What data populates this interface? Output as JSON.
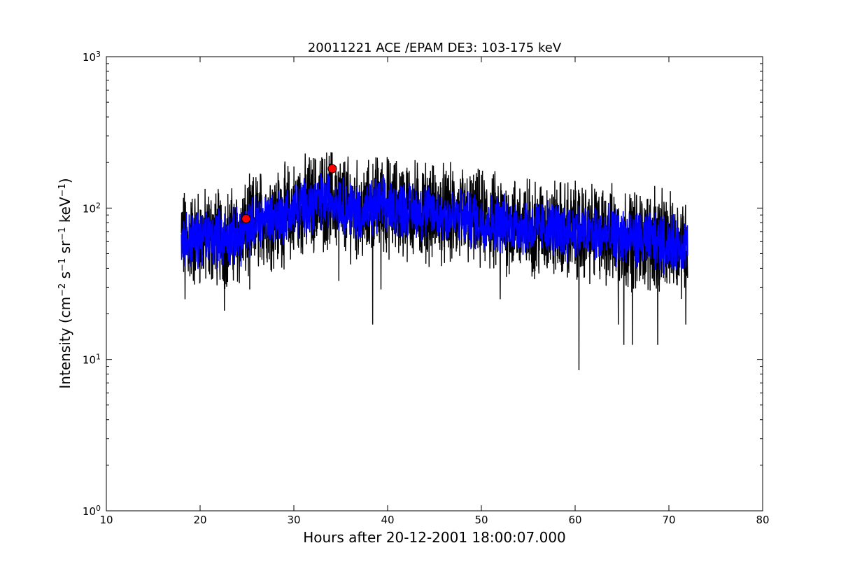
{
  "chart_data": {
    "type": "line",
    "title": "20011221 ACE /EPAM DE3: 103-175 keV",
    "xlabel": "Hours after 20-12-2001 18:00:07.000",
    "ylabel": {
      "base": "Intensity (cm",
      "e1": "−2",
      "t1": " s",
      "e2": "−1",
      "t2": " sr",
      "e3": "−1",
      "t3": " keV",
      "e4": "−1",
      "t4": ")"
    },
    "xlim": [
      10,
      80
    ],
    "ylim": [
      1,
      1000
    ],
    "yscale": "log",
    "xticks": [
      10,
      20,
      30,
      40,
      50,
      60,
      70,
      80
    ],
    "yticks": [
      {
        "value": 1,
        "base": "10",
        "exp": "0"
      },
      {
        "value": 10,
        "base": "10",
        "exp": "1"
      },
      {
        "value": 100,
        "base": "10",
        "exp": "2"
      },
      {
        "value": 1000,
        "base": "10",
        "exp": "3"
      }
    ],
    "grid": false,
    "series": [
      {
        "color": "#000000",
        "x": [
          18.0,
          20.0,
          22.0,
          24.0,
          25.0,
          26.0,
          27.0,
          28.0,
          30.0,
          32.0,
          34.0,
          36.0,
          37.5,
          39.0,
          40.0,
          42.0,
          44.0,
          46.0,
          50.0,
          55.0,
          60.0,
          65.0,
          70.0,
          72.0
        ],
        "center": [
          62,
          63,
          64,
          64,
          70,
          82,
          88,
          85,
          95,
          108,
          115,
          100,
          90,
          105,
          102,
          98,
          95,
          90,
          82,
          75,
          70,
          64,
          58,
          57
        ],
        "spikes": [
          {
            "x": 18.4,
            "y": 25
          },
          {
            "x": 22.6,
            "y": 21
          },
          {
            "x": 25.3,
            "y": 29
          },
          {
            "x": 34.0,
            "y": 200
          },
          {
            "x": 34.8,
            "y": 33
          },
          {
            "x": 38.4,
            "y": 17
          },
          {
            "x": 38.9,
            "y": 215
          },
          {
            "x": 39.3,
            "y": 29
          },
          {
            "x": 52.0,
            "y": 25
          },
          {
            "x": 60.4,
            "y": 8.5
          },
          {
            "x": 64.6,
            "y": 17
          },
          {
            "x": 65.2,
            "y": 12.5
          },
          {
            "x": 66.1,
            "y": 12.5
          },
          {
            "x": 68.8,
            "y": 12.5
          },
          {
            "x": 71.8,
            "y": 17
          },
          {
            "x": 68.5,
            "y": 140
          }
        ]
      },
      {
        "color": "#0000ff",
        "x": [
          18.0,
          20.0,
          22.0,
          24.0,
          25.0,
          26.0,
          27.0,
          28.0,
          30.0,
          32.0,
          34.0,
          36.0,
          37.5,
          39.0,
          40.0,
          42.0,
          44.0,
          46.0,
          50.0,
          55.0,
          60.0,
          65.0,
          70.0,
          72.0
        ],
        "center": [
          62,
          63,
          64,
          64,
          70,
          82,
          88,
          85,
          95,
          108,
          115,
          100,
          90,
          105,
          102,
          98,
          95,
          90,
          82,
          75,
          70,
          64,
          58,
          57
        ]
      }
    ],
    "markers": [
      {
        "x": 34.1,
        "y": 182,
        "color": "#ff0000"
      },
      {
        "x": 24.9,
        "y": 85,
        "color": "#ff0000"
      }
    ],
    "colors": {
      "black_series": "#000000",
      "blue_series": "#0000ff",
      "marker": "#ff0000",
      "marker_edge": "#000000"
    }
  }
}
